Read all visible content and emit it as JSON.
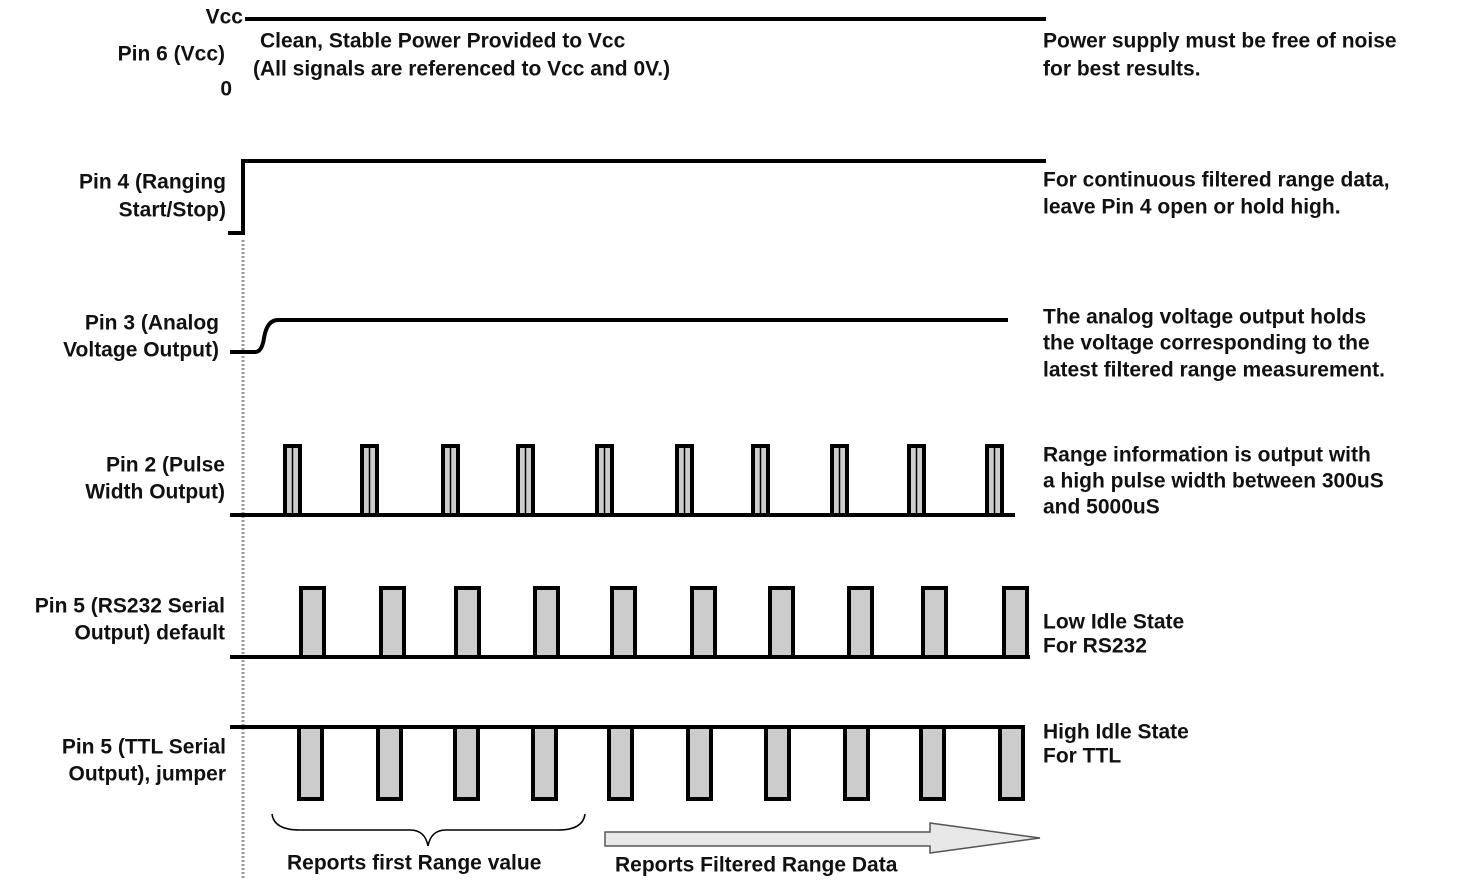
{
  "supply": {
    "label": "Pin 6 (Vcc)",
    "high": "Vcc",
    "low": "0",
    "caption": [
      "Clean, Stable Power Provided to Vcc",
      "(All signals are referenced to Vcc and 0V.)"
    ],
    "note": [
      "Power supply must be free of noise",
      "for best results."
    ]
  },
  "signals": [
    {
      "label": [
        "Pin 4 (Ranging",
        "Start/Stop)"
      ],
      "note": [
        "For continuous filtered range data,",
        "leave Pin 4 open or hold high."
      ]
    },
    {
      "label": [
        "Pin 3 (Analog",
        "Voltage Output)"
      ],
      "note": [
        "The analog voltage output holds",
        "the voltage corresponding to the",
        "latest filtered range measurement."
      ]
    },
    {
      "label": [
        "Pin 2 (Pulse",
        "Width Output)"
      ],
      "note": [
        "Range information is output with",
        "a high pulse width between 300uS",
        "and 5000uS"
      ]
    },
    {
      "label": [
        "Pin 5 (RS232 Serial",
        "Output) default"
      ],
      "note": [
        "Low Idle State",
        "For RS232"
      ]
    },
    {
      "label": [
        "Pin 5 (TTL Serial",
        "Output), jumper"
      ],
      "note": [
        "High Idle State",
        "For TTL"
      ]
    }
  ],
  "footer": {
    "first": "Reports first Range value",
    "filtered": "Reports Filtered Range Data"
  }
}
